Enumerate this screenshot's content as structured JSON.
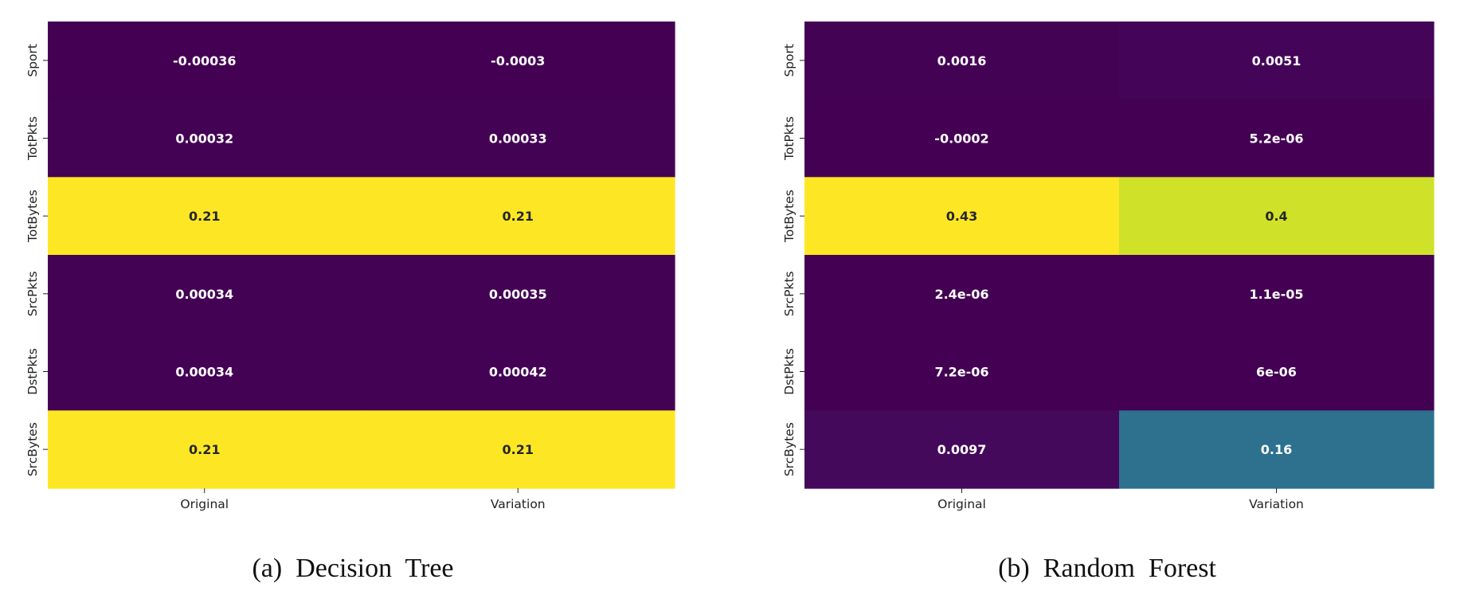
{
  "chart_data": [
    {
      "type": "heatmap",
      "caption": "(a)  Decision  Tree",
      "rows": [
        "Sport",
        "TotPkts",
        "TotBytes",
        "SrcPkts",
        "DstPkts",
        "SrcBytes"
      ],
      "columns": [
        "Original",
        "Variation"
      ],
      "values": [
        [
          -0.00036,
          -0.0003
        ],
        [
          0.00032,
          0.00033
        ],
        [
          0.21,
          0.21
        ],
        [
          0.00034,
          0.00035
        ],
        [
          0.00034,
          0.00042
        ],
        [
          0.21,
          0.21
        ]
      ],
      "labels": [
        [
          "-0.00036",
          "-0.0003"
        ],
        [
          "0.00032",
          "0.00033"
        ],
        [
          "0.21",
          "0.21"
        ],
        [
          "0.00034",
          "0.00035"
        ],
        [
          "0.00034",
          "0.00042"
        ],
        [
          "0.21",
          "0.21"
        ]
      ],
      "colormap": "viridis",
      "colorbar": false
    },
    {
      "type": "heatmap",
      "caption": "(b)  Random  Forest",
      "rows": [
        "Sport",
        "TotPkts",
        "TotBytes",
        "SrcPkts",
        "DstPkts",
        "SrcBytes"
      ],
      "columns": [
        "Original",
        "Variation"
      ],
      "values": [
        [
          0.0016,
          0.0051
        ],
        [
          -0.0002,
          5.2e-06
        ],
        [
          0.43,
          0.4
        ],
        [
          2.4e-06,
          1.1e-05
        ],
        [
          7.2e-06,
          6e-06
        ],
        [
          0.0097,
          0.16
        ]
      ],
      "labels": [
        [
          "0.0016",
          "0.0051"
        ],
        [
          "-0.0002",
          "5.2e-06"
        ],
        [
          "0.43",
          "0.4"
        ],
        [
          "2.4e-06",
          "1.1e-05"
        ],
        [
          "7.2e-06",
          "6e-06"
        ],
        [
          "0.0097",
          "0.16"
        ]
      ],
      "colormap": "viridis",
      "colorbar": false
    }
  ]
}
